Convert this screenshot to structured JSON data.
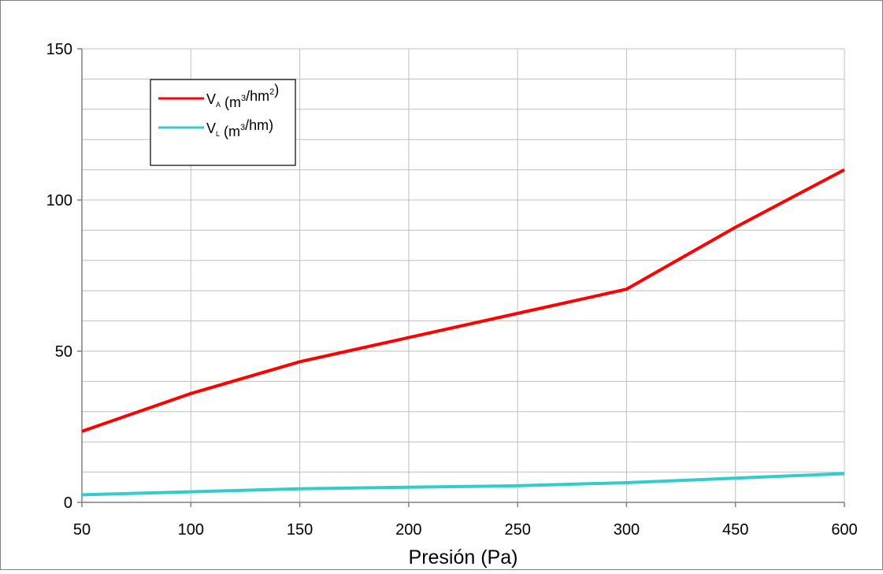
{
  "chart_data": {
    "type": "line",
    "title": "",
    "xlabel": "Presión (Pa)",
    "ylabel": "",
    "categories": [
      "50",
      "100",
      "150",
      "200",
      "250",
      "300",
      "450",
      "600"
    ],
    "y_ticks": [
      "0",
      "50",
      "100",
      "150"
    ],
    "ylim": [
      0,
      150
    ],
    "y_minor_step": 10,
    "grid": true,
    "legend_position": "top-left",
    "series": [
      {
        "name": "V_A (m³/hm²)",
        "legend_base": "V",
        "legend_sub": "A",
        "legend_unit_pre": "(m",
        "legend_sup1": "3",
        "legend_unit_mid": "/hm",
        "legend_sup2": "2",
        "legend_unit_post": ")",
        "color": "#ff0000",
        "values": [
          23.5,
          36,
          46.5,
          54.5,
          62.5,
          70.5,
          91,
          110
        ]
      },
      {
        "name": "V_L (m³/hm)",
        "legend_base": "V",
        "legend_sub": "L",
        "legend_unit_pre": "(m",
        "legend_sup1": "3",
        "legend_unit_mid": "/hm)",
        "legend_sup2": "",
        "legend_unit_post": "",
        "color": "#33cccc",
        "values": [
          2.5,
          3.5,
          4.5,
          5,
          5.5,
          6.5,
          8,
          9.5
        ]
      }
    ],
    "colors": {
      "grid": "#c0c0c0",
      "axis": "#808080",
      "frame": "#808080"
    }
  }
}
